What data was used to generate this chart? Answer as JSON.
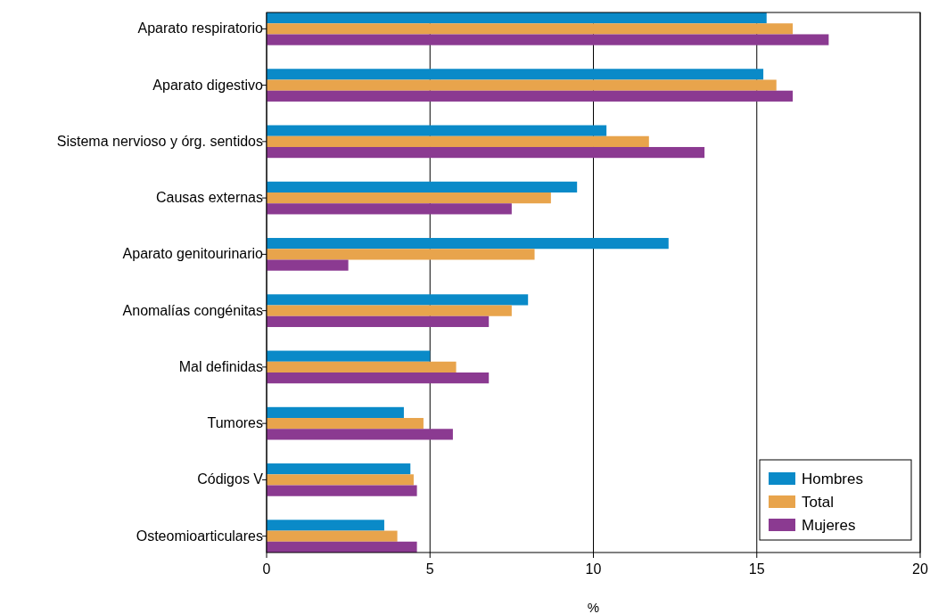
{
  "chart_data": {
    "type": "bar",
    "orientation": "horizontal",
    "xlabel": "%",
    "categories": [
      "Aparato respiratorio",
      "Aparato digestivo",
      "Sistema nervioso y órg. sentidos",
      "Causas externas",
      "Aparato genitourinario",
      "Anomalías congénitas",
      "Mal definidas",
      "Tumores",
      "Códigos V",
      "Osteomioarticulares"
    ],
    "series": [
      {
        "name": "Hombres",
        "color": "#0a8ac8",
        "values": [
          15.3,
          15.2,
          10.4,
          9.5,
          12.3,
          8.0,
          5.0,
          4.2,
          4.4,
          3.6
        ]
      },
      {
        "name": "Total",
        "color": "#e8a44c",
        "values": [
          16.1,
          15.6,
          11.7,
          8.7,
          8.2,
          7.5,
          5.8,
          4.8,
          4.5,
          4.0
        ]
      },
      {
        "name": "Mujeres",
        "color": "#8b3a91",
        "values": [
          17.2,
          16.1,
          13.4,
          7.5,
          2.5,
          6.8,
          6.8,
          5.7,
          4.6,
          4.6
        ]
      }
    ],
    "xlim": [
      0,
      20
    ],
    "xticks": [
      0,
      5,
      10,
      15,
      20
    ],
    "grid": "x",
    "legend": "bottom right"
  }
}
